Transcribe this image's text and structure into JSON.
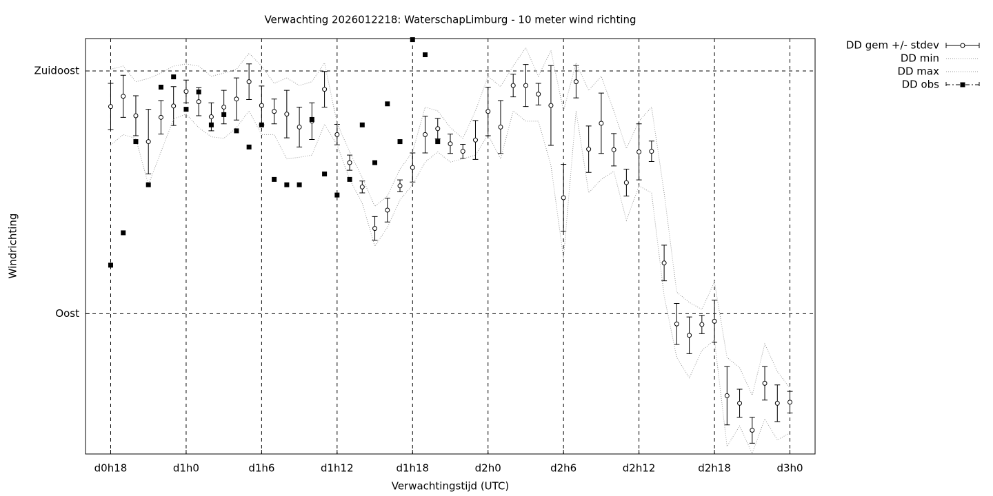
{
  "chart_data": {
    "type": "errorbar-line",
    "title": "Verwachting 2026012218: WaterschapLimburg - 10 meter wind richting",
    "xlabel": "Verwachtingstijd (UTC)",
    "ylabel": "Windrichting",
    "xlim": [
      16,
      74
    ],
    "ylim": [
      64,
      141
    ],
    "xticks": [
      {
        "value": 18,
        "label": "d0h18"
      },
      {
        "value": 24,
        "label": "d1h0"
      },
      {
        "value": 30,
        "label": "d1h6"
      },
      {
        "value": 36,
        "label": "d1h12"
      },
      {
        "value": 42,
        "label": "d1h18"
      },
      {
        "value": 48,
        "label": "d2h0"
      },
      {
        "value": 54,
        "label": "d2h6"
      },
      {
        "value": 60,
        "label": "d2h12"
      },
      {
        "value": 66,
        "label": "d2h18"
      },
      {
        "value": 72,
        "label": "d3h0"
      }
    ],
    "yticks": [
      {
        "value": 90,
        "label": "Oost"
      },
      {
        "value": 135,
        "label": "Zuidoost"
      }
    ],
    "grid": true,
    "legend": "outside-top-right",
    "x": [
      18,
      19,
      20,
      21,
      22,
      23,
      24,
      25,
      26,
      27,
      28,
      29,
      30,
      31,
      32,
      33,
      34,
      35,
      36,
      37,
      38,
      39,
      40,
      41,
      42,
      43,
      44,
      45,
      46,
      47,
      48,
      49,
      50,
      51,
      52,
      53,
      54,
      55,
      56,
      57,
      58,
      59,
      60,
      61,
      62,
      63,
      64,
      65,
      66,
      67,
      68,
      69,
      70,
      71,
      72
    ],
    "series": [
      {
        "name": "DD gem +/- stdev",
        "color": "#000000",
        "style": "errorbar",
        "values": [
          128.4,
          130.3,
          126.7,
          121.9,
          126.4,
          128.5,
          131.2,
          129.3,
          126.5,
          128.3,
          129.8,
          133.0,
          128.6,
          127.5,
          127.0,
          124.6,
          125.7,
          131.6,
          123.2,
          118.0,
          113.5,
          105.8,
          109.2,
          113.7,
          117.1,
          123.2,
          124.3,
          121.5,
          120.1,
          122.2,
          127.5,
          124.6,
          132.3,
          132.3,
          130.7,
          128.6,
          111.5,
          133.0,
          120.5,
          125.3,
          120.4,
          114.3,
          120.0,
          120.1,
          99.4,
          88.1,
          86.0,
          88.0,
          88.6,
          74.8,
          73.4,
          68.4,
          77.1,
          73.4,
          73.6
        ],
        "errors": [
          4.3,
          3.9,
          3.7,
          6.0,
          3.1,
          3.6,
          2.1,
          2.6,
          2.6,
          3.1,
          3.9,
          3.3,
          3.6,
          2.3,
          4.4,
          3.7,
          3.4,
          3.3,
          1.9,
          1.4,
          1.1,
          2.2,
          2.2,
          1.1,
          2.7,
          3.4,
          1.9,
          1.8,
          1.3,
          3.6,
          4.5,
          4.9,
          2.1,
          3.9,
          2.0,
          7.4,
          6.2,
          3.0,
          4.3,
          5.6,
          3.0,
          2.5,
          5.2,
          1.9,
          3.3,
          3.8,
          3.4,
          1.7,
          3.9,
          5.4,
          2.6,
          2.4,
          3.1,
          3.4,
          2.0
        ]
      },
      {
        "name": "DD min",
        "color": "#999999",
        "style": "dotted",
        "values": [
          121.3,
          123.2,
          122.5,
          113.9,
          120.0,
          126.1,
          127.0,
          124.5,
          122.8,
          122.5,
          124.5,
          127.6,
          123.2,
          123.2,
          118.7,
          119.0,
          119.4,
          125.1,
          121.3,
          114.9,
          110.5,
          102.5,
          106.0,
          111.1,
          113.9,
          118.1,
          120.0,
          118.1,
          118.7,
          119.4,
          123.2,
          118.7,
          127.6,
          125.7,
          125.7,
          117.5,
          100.3,
          127.6,
          112.4,
          114.9,
          116.4,
          107.3,
          113.7,
          112.4,
          93.3,
          81.9,
          78.1,
          83.2,
          85.1,
          65.4,
          69.2,
          64.1,
          70.5,
          66.6,
          67.9
        ]
      },
      {
        "name": "DD max",
        "color": "#999999",
        "style": "dotted",
        "values": [
          135.3,
          135.9,
          133.0,
          133.6,
          134.6,
          135.9,
          136.3,
          135.9,
          134.0,
          134.6,
          135.3,
          138.3,
          135.9,
          132.7,
          133.7,
          132.3,
          133.0,
          136.5,
          125.3,
          120.0,
          115.2,
          109.9,
          111.8,
          116.8,
          120.0,
          128.3,
          127.6,
          124.5,
          122.5,
          127.6,
          134.0,
          132.1,
          135.9,
          139.3,
          134.0,
          138.8,
          127.6,
          136.5,
          131.4,
          134.0,
          127.6,
          120.6,
          125.7,
          128.3,
          112.4,
          94.0,
          92.1,
          90.8,
          95.9,
          81.9,
          80.0,
          74.9,
          84.4,
          79.3,
          76.2
        ]
      },
      {
        "name": "DD obs",
        "color": "#000000",
        "style": "points",
        "values": [
          99.0,
          105.0,
          121.9,
          113.9,
          132.0,
          133.9,
          127.9,
          131.1,
          125.0,
          126.9,
          123.9,
          120.9,
          125.0,
          114.9,
          113.9,
          113.9,
          126.0,
          115.9,
          112.0,
          114.9,
          125.0,
          118.0,
          128.9,
          121.9,
          140.8,
          138.0,
          121.9,
          null,
          null,
          null,
          null,
          null,
          null,
          null,
          null,
          null,
          null,
          null,
          null,
          null,
          null,
          null,
          null,
          null,
          null,
          null,
          null,
          null,
          null,
          null,
          null,
          null,
          null,
          null,
          null
        ]
      }
    ]
  }
}
